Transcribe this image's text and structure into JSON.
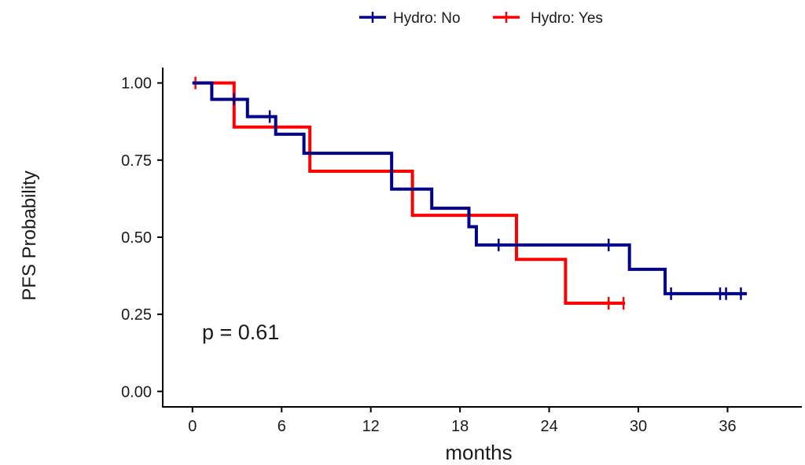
{
  "chart_data": {
    "type": "line",
    "step": true,
    "xlabel": "months",
    "ylabel": "PFS Probability",
    "xlim": [
      -2,
      41
    ],
    "ylim": [
      -0.05,
      1.05
    ],
    "x_ticks": [
      0,
      6,
      12,
      18,
      24,
      30,
      36
    ],
    "y_ticks": [
      0.0,
      0.25,
      0.5,
      0.75,
      1.0
    ],
    "x_tick_labels": [
      "0",
      "6",
      "12",
      "18",
      "24",
      "30",
      "36"
    ],
    "y_tick_labels": [
      "0.00",
      "0.25",
      "0.50",
      "0.75",
      "1.00"
    ],
    "legend_position": "top",
    "annotation": "p = 0.61",
    "series": [
      {
        "name": "Hydro: No",
        "color": "#00008B",
        "steps": [
          [
            0,
            1.0
          ],
          [
            1.3,
            0.947
          ],
          [
            3.7,
            0.891
          ],
          [
            5.6,
            0.834
          ],
          [
            7.5,
            0.772
          ],
          [
            11.9,
            0.772
          ],
          [
            13.4,
            0.656
          ],
          [
            16.1,
            0.594
          ],
          [
            18.6,
            0.534
          ],
          [
            19.1,
            0.475
          ],
          [
            29.4,
            0.396
          ],
          [
            31.8,
            0.317
          ],
          [
            37.3,
            0.317
          ]
        ],
        "censors": [
          [
            2.8,
            0.947
          ],
          [
            5.2,
            0.891
          ],
          [
            20.6,
            0.475
          ],
          [
            28.0,
            0.475
          ],
          [
            32.2,
            0.317
          ],
          [
            35.5,
            0.317
          ],
          [
            35.9,
            0.317
          ],
          [
            36.9,
            0.317
          ]
        ]
      },
      {
        "name": "Hydro: Yes",
        "color": "#FF0000",
        "steps": [
          [
            0,
            1.0
          ],
          [
            2.8,
            0.857
          ],
          [
            7.9,
            0.714
          ],
          [
            14.8,
            0.571
          ],
          [
            21.8,
            0.428
          ],
          [
            25.1,
            0.286
          ],
          [
            29.1,
            0.286
          ]
        ],
        "censors": [
          [
            0.2,
            1.0
          ],
          [
            28.0,
            0.286
          ],
          [
            29.0,
            0.286
          ]
        ]
      }
    ]
  }
}
